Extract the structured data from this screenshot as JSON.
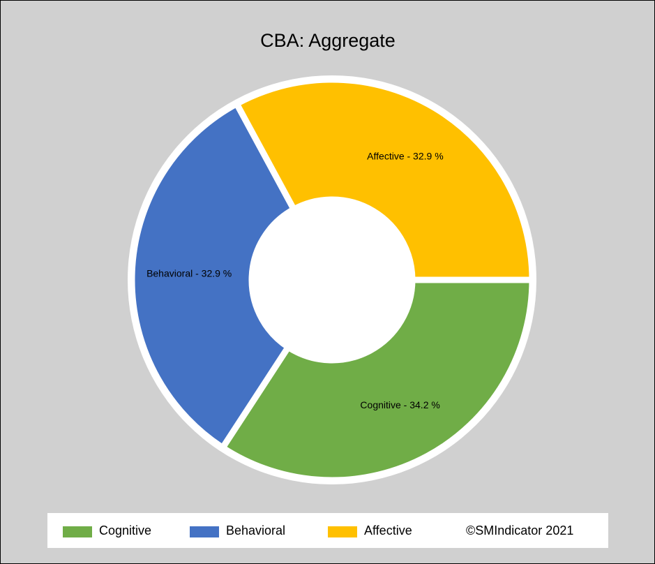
{
  "chart_data": {
    "type": "donut",
    "title": "CBA: Aggregate",
    "categories": [
      "Cognitive",
      "Behavioral",
      "Affective"
    ],
    "values": [
      34.2,
      32.9,
      32.9
    ],
    "value_labels": [
      "Cognitive - 34.2 %",
      "Behavioral - 32.9 %",
      "Affective - 32.9 %"
    ],
    "colors": [
      "#70ad47",
      "#4472c4",
      "#ffc000"
    ],
    "legend_note": "©SMIndicator 2021"
  }
}
